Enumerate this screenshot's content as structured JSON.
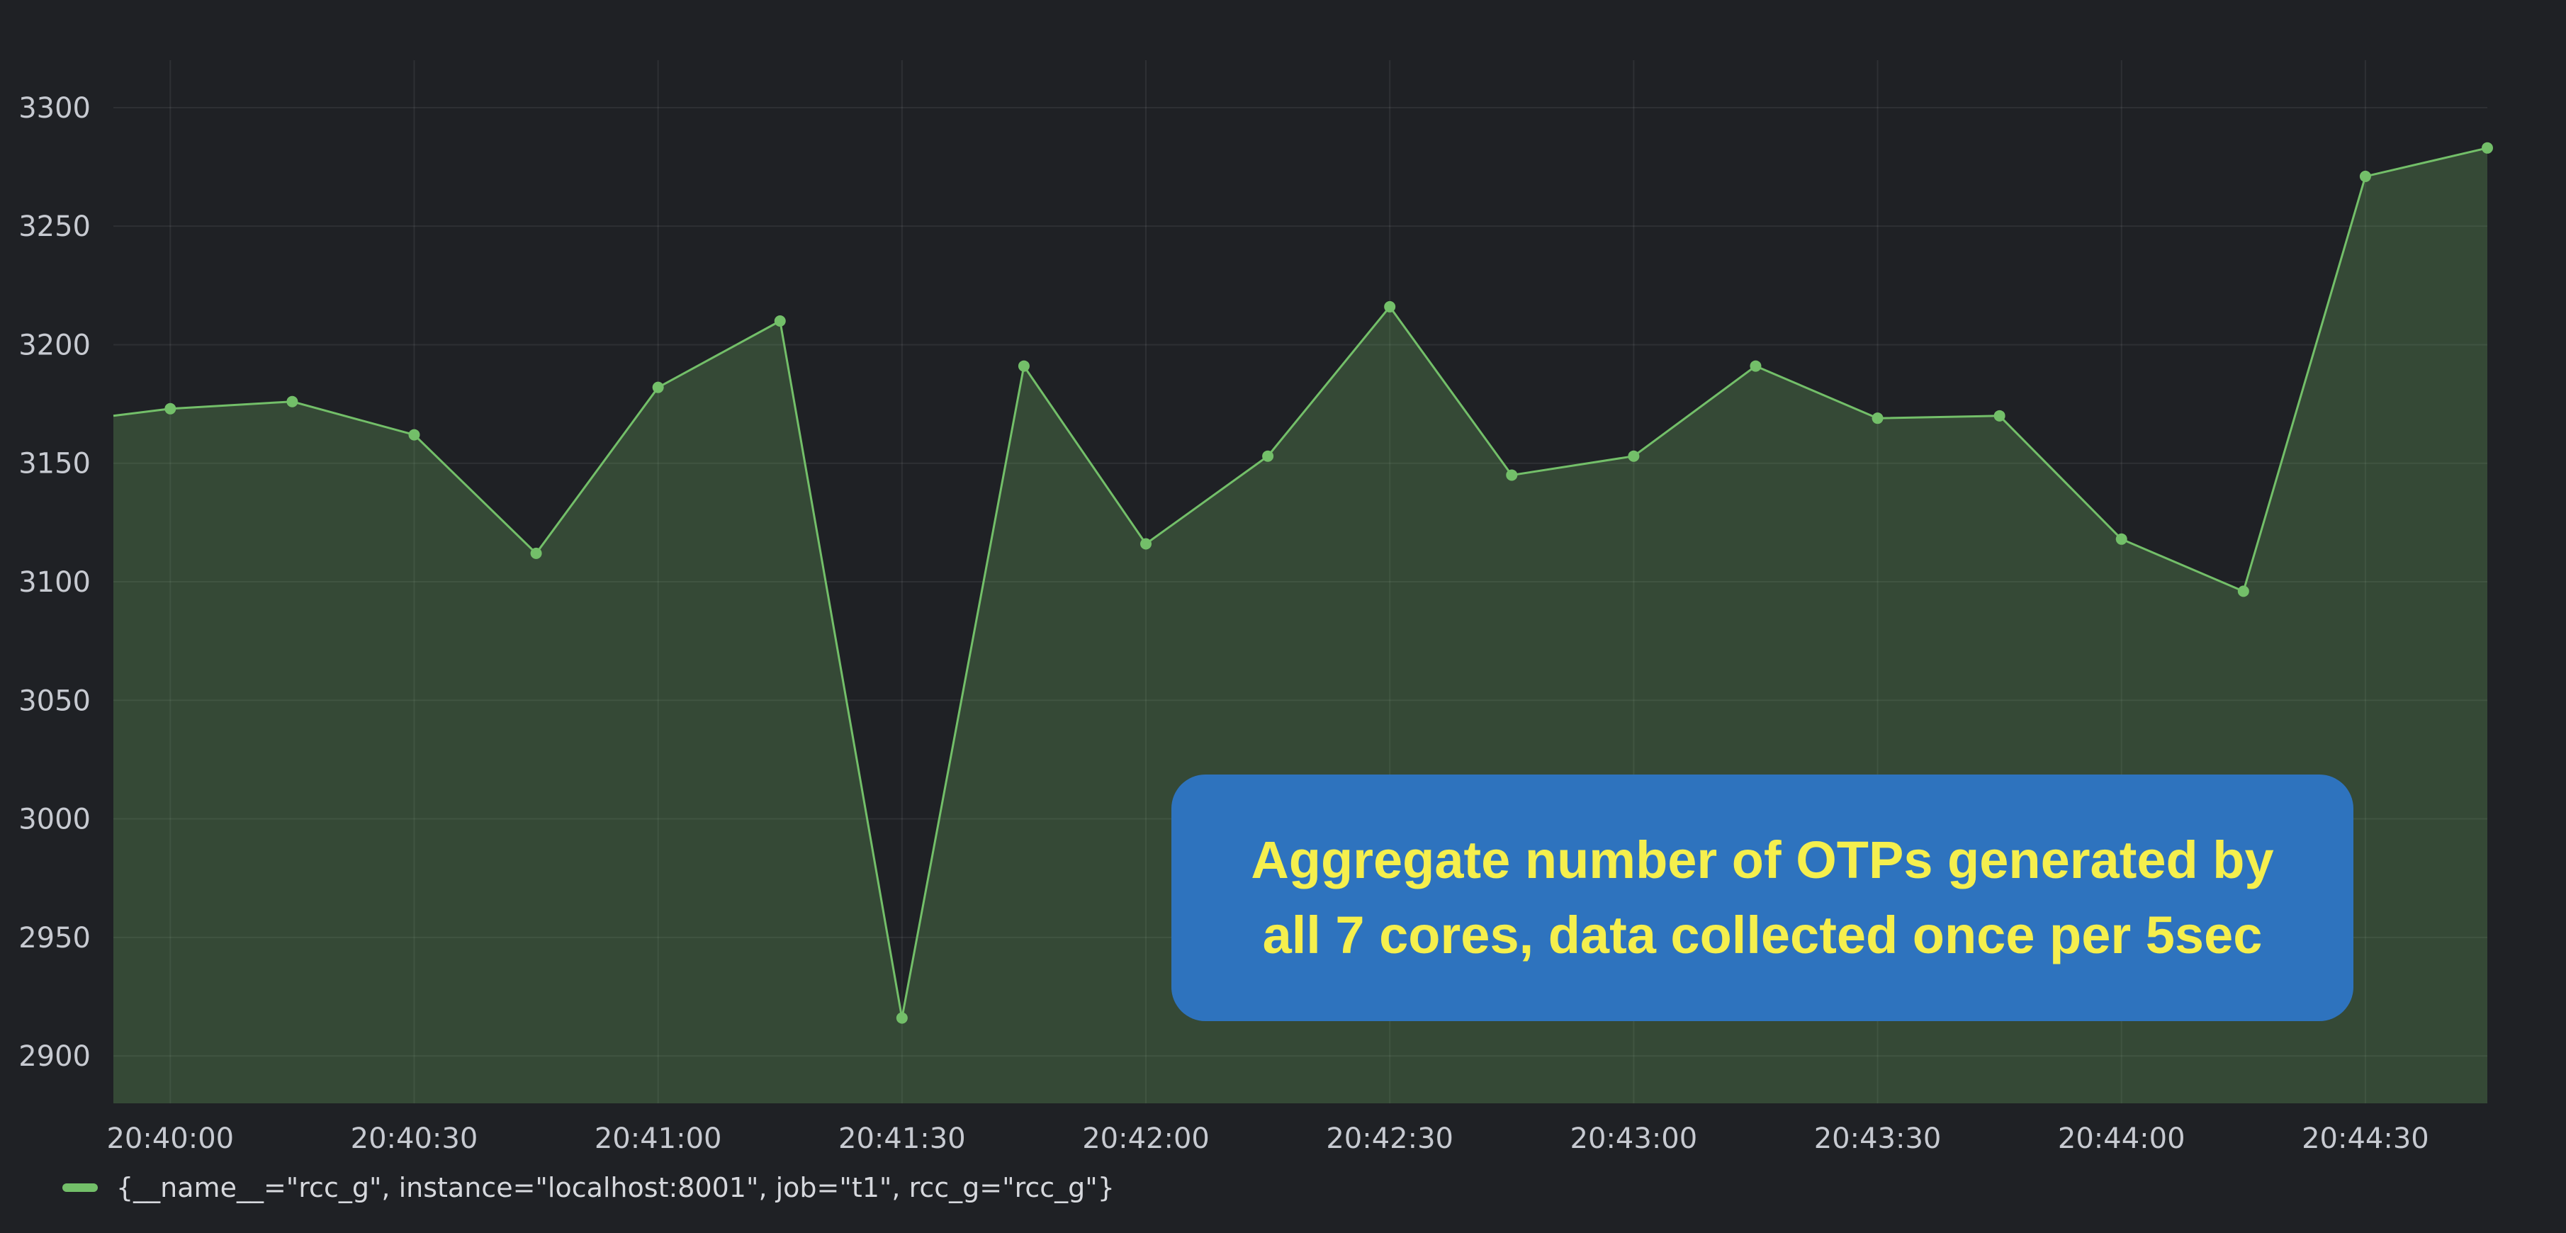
{
  "chart_data": {
    "type": "area",
    "title": "",
    "xlabel": "",
    "ylabel": "",
    "ylim": [
      2880,
      3320
    ],
    "xlim": [
      "20:39:53",
      "20:44:45"
    ],
    "y_ticks": [
      2900,
      2950,
      3000,
      3050,
      3100,
      3150,
      3200,
      3250,
      3300
    ],
    "x_ticks": [
      "20:40:00",
      "20:40:30",
      "20:41:00",
      "20:41:30",
      "20:42:00",
      "20:42:30",
      "20:43:00",
      "20:43:30",
      "20:44:00",
      "20:44:30"
    ],
    "grid": true,
    "legend_position": "bottom-left",
    "series": [
      {
        "name": "{__name__=\"rcc_g\", instance=\"localhost:8001\", job=\"t1\", rcc_g=\"rcc_g\"}",
        "color": "#73bf69",
        "x": [
          "20:40:00",
          "20:40:15",
          "20:40:30",
          "20:40:45",
          "20:41:00",
          "20:41:15",
          "20:41:30",
          "20:41:45",
          "20:42:00",
          "20:42:15",
          "20:42:30",
          "20:42:45",
          "20:43:00",
          "20:43:15",
          "20:43:30",
          "20:43:45",
          "20:44:00",
          "20:44:15",
          "20:44:30",
          "20:44:45"
        ],
        "values": [
          3173,
          3176,
          3162,
          3112,
          3182,
          3210,
          2916,
          3191,
          3116,
          3153,
          3216,
          3145,
          3153,
          3191,
          3169,
          3170,
          3118,
          3096,
          3271,
          3283
        ],
        "left_edge_value": 3170
      }
    ]
  },
  "annotation": {
    "line1": "Aggregate number of OTPs generated by",
    "line2": "all 7 cores, data collected once per 5sec"
  },
  "colors": {
    "background": "#1f2125",
    "series": "#73bf69",
    "annotation_bg": "#2e73be",
    "annotation_text": "#f5ef4d"
  }
}
